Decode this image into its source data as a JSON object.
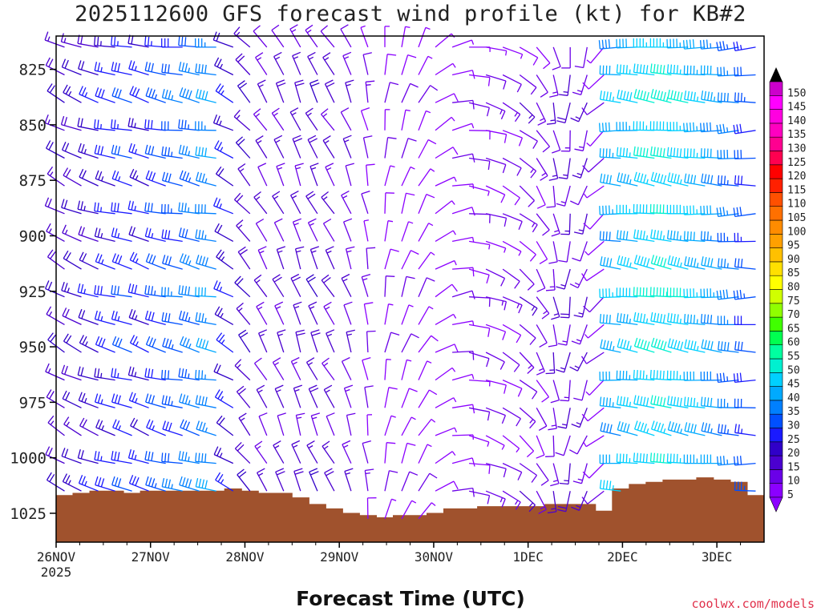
{
  "chart_data": {
    "type": "heatmap",
    "title": "2025112600 GFS forecast wind profile (kt) for KB#2",
    "xlabel": "Forecast Time (UTC)",
    "credit": "coolwx.com/models",
    "x_ticks": [
      "26NOV",
      "27NOV",
      "28NOV",
      "29NOV",
      "30NOV",
      "1DEC",
      "2DEC",
      "3DEC"
    ],
    "x_tick_sublabel": "2025",
    "x_range_days": [
      0,
      7.5
    ],
    "y_ticks": [
      825,
      850,
      875,
      900,
      925,
      950,
      975,
      1000,
      1025
    ],
    "y_range_hpa": [
      810,
      1038
    ],
    "colorbar": {
      "levels": [
        5,
        10,
        15,
        20,
        25,
        30,
        35,
        40,
        45,
        50,
        55,
        60,
        65,
        70,
        75,
        80,
        85,
        90,
        95,
        100,
        105,
        110,
        115,
        120,
        125,
        130,
        135,
        140,
        145,
        150
      ],
      "colors": [
        "#8b00ff",
        "#6a00e8",
        "#4b00d0",
        "#3000c8",
        "#1a1aff",
        "#0050ff",
        "#0080ff",
        "#00aaff",
        "#00d0ff",
        "#00f0d0",
        "#00ffa0",
        "#00ff50",
        "#40ff00",
        "#90ff00",
        "#d0ff00",
        "#ffff00",
        "#ffe000",
        "#ffc000",
        "#ffa000",
        "#ff8c00",
        "#ff7000",
        "#ff5000",
        "#ff2000",
        "#ff0000",
        "#ff0050",
        "#ff0090",
        "#ff00c0",
        "#ff00e0",
        "#ff00ff",
        "#cc00cc"
      ]
    },
    "terrain_color": "#a0522d",
    "surface_pressure_hpa": [
      1017,
      1016,
      1015,
      1015,
      1016,
      1015,
      1015,
      1015,
      1015,
      1015,
      1014,
      1015,
      1016,
      1016,
      1018,
      1021,
      1023,
      1025,
      1026,
      1027,
      1026,
      1026,
      1025,
      1023,
      1023,
      1022,
      1022,
      1022,
      1022,
      1021,
      1021,
      1021,
      1024,
      1014,
      1012,
      1011,
      1010,
      1010,
      1009,
      1010,
      1011,
      1017
    ],
    "wind_columns": [
      {
        "speed": 18,
        "dir": 300
      },
      {
        "speed": 20,
        "dir": 295
      },
      {
        "speed": 22,
        "dir": 290
      },
      {
        "speed": 26,
        "dir": 285
      },
      {
        "speed": 28,
        "dir": 285
      },
      {
        "speed": 25,
        "dir": 290
      },
      {
        "speed": 30,
        "dir": 285
      },
      {
        "speed": 32,
        "dir": 280
      },
      {
        "speed": 35,
        "dir": 285
      },
      {
        "speed": 38,
        "dir": 280
      },
      {
        "speed": 24,
        "dir": 300
      },
      {
        "speed": 18,
        "dir": 320
      },
      {
        "speed": 14,
        "dir": 330
      },
      {
        "speed": 15,
        "dir": 335
      },
      {
        "speed": 16,
        "dir": 340
      },
      {
        "speed": 17,
        "dir": 335
      },
      {
        "speed": 15,
        "dir": 330
      },
      {
        "speed": 13,
        "dir": 340
      },
      {
        "speed": 10,
        "dir": 350
      },
      {
        "speed": 8,
        "dir": 10
      },
      {
        "speed": 8,
        "dir": 20
      },
      {
        "speed": 7,
        "dir": 30
      },
      {
        "speed": 6,
        "dir": 60
      },
      {
        "speed": 8,
        "dir": 80
      },
      {
        "speed": 9,
        "dir": 100
      },
      {
        "speed": 10,
        "dir": 110
      },
      {
        "speed": 10,
        "dir": 120
      },
      {
        "speed": 12,
        "dir": 130
      },
      {
        "speed": 11,
        "dir": 150
      },
      {
        "speed": 13,
        "dir": 170
      },
      {
        "speed": 15,
        "dir": 190
      },
      {
        "speed": 14,
        "dir": 200
      },
      {
        "speed": 8,
        "dir": 230
      },
      {
        "speed": 42,
        "dir": 275
      },
      {
        "speed": 45,
        "dir": 278
      },
      {
        "speed": 48,
        "dir": 280
      },
      {
        "speed": 50,
        "dir": 280
      },
      {
        "speed": 47,
        "dir": 278
      },
      {
        "speed": 44,
        "dir": 275
      },
      {
        "speed": 40,
        "dir": 275
      },
      {
        "speed": 36,
        "dir": 270
      },
      {
        "speed": 30,
        "dir": 270
      }
    ]
  }
}
